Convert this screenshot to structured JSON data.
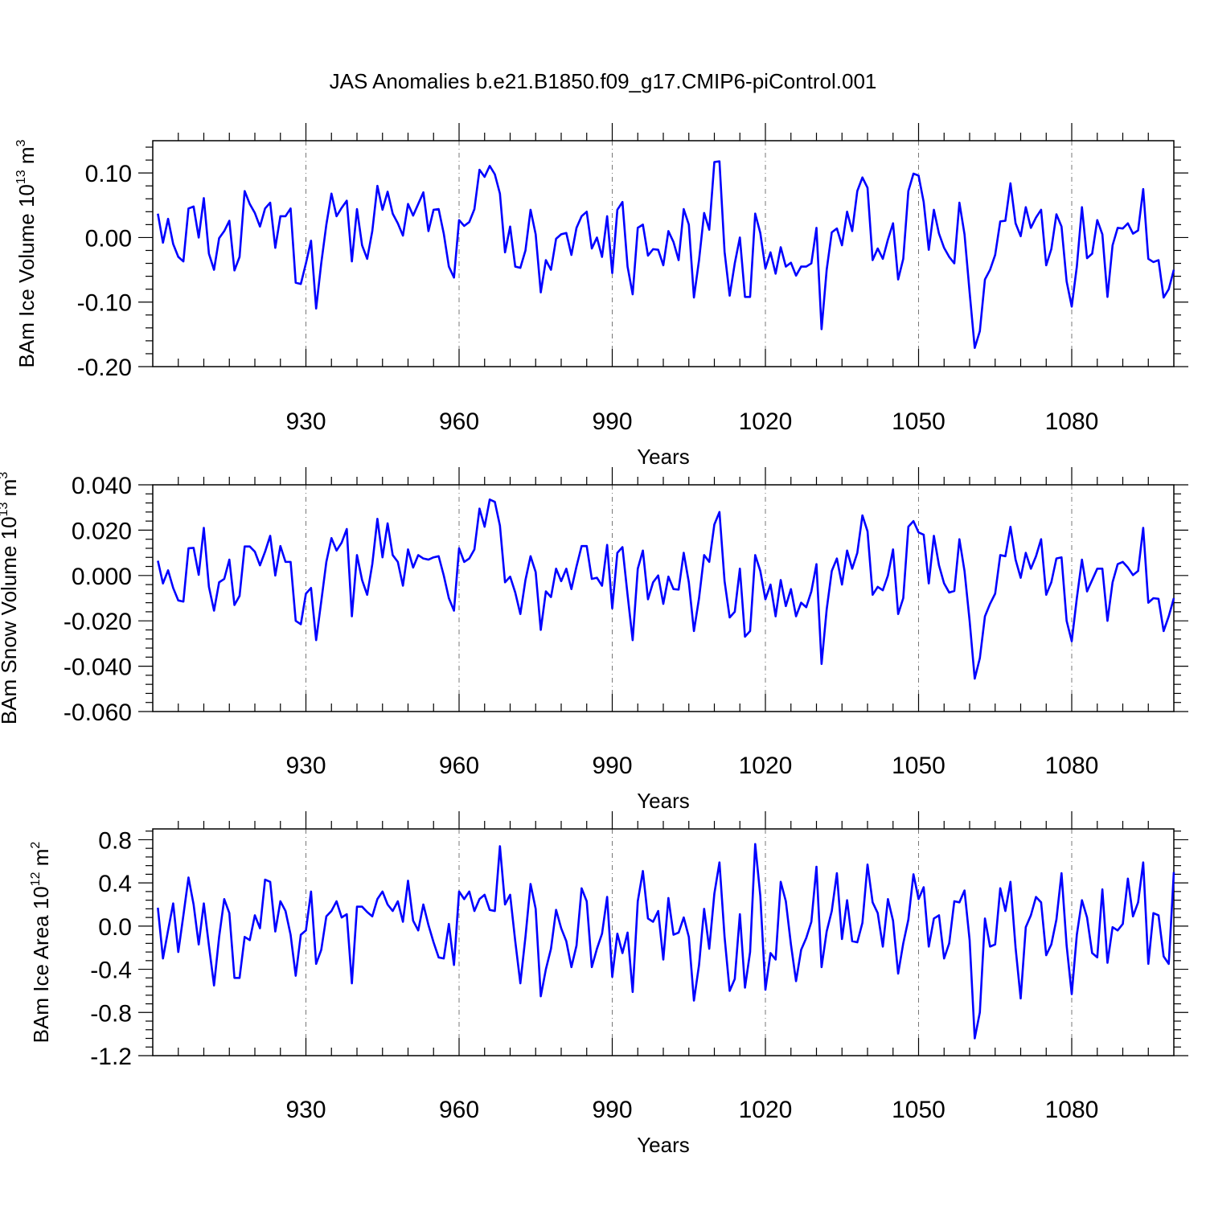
{
  "title": "JAS Anomalies b.e21.B1850.f09_g17.CMIP6-piControl.001",
  "chart_data": [
    {
      "type": "line",
      "name": "ice-volume",
      "ylabel": "BAm Ice Volume 10",
      "yunit_exp": "13",
      "yunit_tail": " m",
      "yunit_pow": "3",
      "xlabel": "Years",
      "xlim": [
        900,
        1100
      ],
      "ylim": [
        -0.2,
        0.15
      ],
      "yticks": [
        -0.2,
        -0.1,
        0.0,
        0.1
      ],
      "ytick_labels": [
        "-0.20",
        "-0.10",
        "0.00",
        "0.10"
      ],
      "xticks": [
        930,
        960,
        990,
        1020,
        1050,
        1080
      ],
      "xtick_labels": [
        "930",
        "960",
        "990",
        "1020",
        "1050",
        "1080"
      ],
      "x_start": 901,
      "color": "#0000ff",
      "values": [
        0.037,
        -0.008,
        0.029,
        -0.01,
        -0.03,
        -0.037,
        0.045,
        0.048,
        0.0,
        0.061,
        -0.025,
        -0.05,
        -0.001,
        0.01,
        0.026,
        -0.051,
        -0.03,
        0.072,
        0.052,
        0.038,
        0.017,
        0.045,
        0.054,
        -0.016,
        0.033,
        0.033,
        0.045,
        -0.07,
        -0.072,
        -0.04,
        -0.005,
        -0.11,
        -0.04,
        0.02,
        0.068,
        0.033,
        0.046,
        0.057,
        -0.037,
        0.044,
        -0.012,
        -0.033,
        0.01,
        0.08,
        0.043,
        0.071,
        0.037,
        0.022,
        0.003,
        0.052,
        0.034,
        0.052,
        0.07,
        0.01,
        0.043,
        0.044,
        0.006,
        -0.045,
        -0.062,
        0.027,
        0.018,
        0.024,
        0.044,
        0.105,
        0.094,
        0.111,
        0.098,
        0.068,
        -0.023,
        0.017,
        -0.045,
        -0.047,
        -0.02,
        0.043,
        0.005,
        -0.085,
        -0.035,
        -0.05,
        -0.002,
        0.005,
        0.007,
        -0.027,
        0.015,
        0.033,
        0.04,
        -0.017,
        0.0,
        -0.03,
        0.033,
        -0.055,
        0.043,
        0.055,
        -0.045,
        -0.088,
        0.015,
        0.02,
        -0.028,
        -0.018,
        -0.019,
        -0.043,
        0.01,
        -0.007,
        -0.035,
        0.044,
        0.02,
        -0.093,
        -0.035,
        0.038,
        0.012,
        0.117,
        0.118,
        -0.022,
        -0.09,
        -0.04,
        0.0,
        -0.092,
        -0.092,
        0.037,
        0.007,
        -0.048,
        -0.023,
        -0.056,
        -0.015,
        -0.045,
        -0.039,
        -0.059,
        -0.045,
        -0.045,
        -0.04,
        0.015,
        -0.142,
        -0.05,
        0.008,
        0.014,
        -0.012,
        0.04,
        0.01,
        0.072,
        0.093,
        0.077,
        -0.035,
        -0.017,
        -0.033,
        -0.003,
        0.022,
        -0.065,
        -0.033,
        0.072,
        0.099,
        0.096,
        0.055,
        -0.019,
        0.043,
        0.006,
        -0.016,
        -0.03,
        -0.04,
        0.054,
        0.005,
        -0.085,
        -0.171,
        -0.145,
        -0.065,
        -0.05,
        -0.027,
        0.025,
        0.026,
        0.084,
        0.022,
        0.002,
        0.047,
        0.015,
        0.031,
        0.043,
        -0.043,
        -0.018,
        0.036,
        0.017,
        -0.068,
        -0.107,
        -0.045,
        0.047,
        -0.032,
        -0.025,
        0.027,
        0.005,
        -0.092,
        -0.012,
        0.015,
        0.014,
        0.022,
        0.006,
        0.011,
        0.075,
        -0.033,
        -0.038,
        -0.035,
        -0.093,
        -0.08,
        -0.05
      ]
    },
    {
      "type": "line",
      "name": "snow-volume",
      "ylabel": "BAm Snow Volume 10",
      "yunit_exp": "13",
      "yunit_tail": " m",
      "yunit_pow": "3",
      "xlabel": "Years",
      "xlim": [
        900,
        1100
      ],
      "ylim": [
        -0.06,
        0.04
      ],
      "yticks": [
        -0.06,
        -0.04,
        -0.02,
        0.0,
        0.02,
        0.04
      ],
      "ytick_labels": [
        "-0.060",
        "-0.040",
        "-0.020",
        "0.000",
        "0.020",
        "0.040"
      ],
      "xticks": [
        930,
        960,
        990,
        1020,
        1050,
        1080
      ],
      "xtick_labels": [
        "930",
        "960",
        "990",
        "1020",
        "1050",
        "1080"
      ],
      "x_start": 901,
      "color": "#0000ff",
      "values": [
        0.0065,
        -0.0035,
        0.0023,
        -0.0055,
        -0.011,
        -0.0115,
        0.012,
        0.0122,
        0.0003,
        0.021,
        -0.005,
        -0.0155,
        -0.003,
        -0.0015,
        0.007,
        -0.013,
        -0.009,
        0.0128,
        0.0128,
        0.0105,
        0.0045,
        0.0105,
        0.0175,
        0.0,
        0.013,
        0.006,
        0.006,
        -0.02,
        -0.0215,
        -0.008,
        -0.0055,
        -0.0285,
        -0.0115,
        0.006,
        0.0165,
        0.011,
        0.0145,
        0.0205,
        -0.018,
        0.009,
        -0.002,
        -0.0085,
        0.005,
        0.025,
        0.008,
        0.023,
        0.009,
        0.006,
        -0.0045,
        0.0115,
        0.0035,
        0.009,
        0.0075,
        0.007,
        0.008,
        0.0085,
        0.0,
        -0.01,
        -0.0155,
        0.012,
        0.006,
        0.0075,
        0.0115,
        0.0295,
        0.0215,
        0.0335,
        0.0325,
        0.022,
        -0.003,
        -0.0005,
        -0.0075,
        -0.017,
        -0.002,
        0.0085,
        0.0015,
        -0.024,
        -0.007,
        -0.0095,
        0.003,
        -0.0025,
        0.003,
        -0.006,
        0.004,
        0.013,
        0.013,
        -0.0015,
        -0.001,
        -0.0045,
        0.0135,
        -0.0145,
        0.01,
        0.0125,
        -0.0085,
        -0.0285,
        0.003,
        0.011,
        -0.0105,
        -0.003,
        0.0,
        -0.0125,
        -0.0005,
        -0.006,
        -0.0062,
        0.01,
        -0.003,
        -0.0245,
        -0.01,
        0.009,
        0.006,
        0.0225,
        0.028,
        -0.0025,
        -0.0185,
        -0.016,
        0.003,
        -0.027,
        -0.0245,
        0.009,
        0.002,
        -0.0105,
        -0.004,
        -0.018,
        -0.002,
        -0.0135,
        -0.006,
        -0.018,
        -0.012,
        -0.014,
        -0.007,
        0.005,
        -0.039,
        -0.015,
        0.002,
        0.0075,
        -0.004,
        0.011,
        0.003,
        0.01,
        0.0265,
        0.0195,
        -0.0085,
        -0.005,
        -0.0065,
        0.0,
        0.0115,
        -0.017,
        -0.01,
        0.0215,
        0.024,
        0.019,
        0.018,
        -0.0035,
        0.0175,
        0.0045,
        -0.0035,
        -0.0075,
        -0.0068,
        0.016,
        0.002,
        -0.02,
        -0.0455,
        -0.0365,
        -0.018,
        -0.0125,
        -0.008,
        0.009,
        0.0085,
        0.0215,
        0.007,
        -0.001,
        0.01,
        0.003,
        0.0085,
        0.016,
        -0.0085,
        -0.003,
        0.0075,
        0.008,
        -0.02,
        -0.029,
        -0.01,
        0.007,
        -0.007,
        -0.002,
        0.003,
        0.003,
        -0.02,
        -0.003,
        0.005,
        0.006,
        0.0035,
        0.0002,
        0.002,
        0.021,
        -0.012,
        -0.01,
        -0.0103,
        -0.0245,
        -0.018,
        -0.01
      ]
    },
    {
      "type": "line",
      "name": "ice-area",
      "ylabel": "BAm Ice Area 10",
      "yunit_exp": "12",
      "yunit_tail": " m",
      "yunit_pow": "2",
      "xlabel": "Years",
      "xlim": [
        900,
        1100
      ],
      "ylim": [
        -1.2,
        0.9
      ],
      "yticks": [
        -1.2,
        -0.8,
        -0.4,
        0.0,
        0.4,
        0.8
      ],
      "ytick_labels": [
        "-1.2",
        "-0.8",
        "-0.4",
        "0.0",
        "0.4",
        "0.8"
      ],
      "xticks": [
        930,
        960,
        990,
        1020,
        1050,
        1080
      ],
      "xtick_labels": [
        "930",
        "960",
        "990",
        "1020",
        "1050",
        "1080"
      ],
      "x_start": 901,
      "color": "#0000ff",
      "values": [
        0.17,
        -0.3,
        -0.04,
        0.21,
        -0.24,
        0.1,
        0.45,
        0.2,
        -0.17,
        0.21,
        -0.18,
        -0.55,
        -0.1,
        0.25,
        0.12,
        -0.48,
        -0.48,
        -0.1,
        -0.13,
        0.1,
        -0.02,
        0.43,
        0.41,
        -0.05,
        0.23,
        0.14,
        -0.08,
        -0.46,
        -0.08,
        -0.04,
        0.32,
        -0.35,
        -0.22,
        0.09,
        0.14,
        0.23,
        0.08,
        0.11,
        -0.53,
        0.18,
        0.18,
        0.13,
        0.09,
        0.25,
        0.32,
        0.2,
        0.14,
        0.23,
        0.04,
        0.42,
        0.05,
        -0.04,
        0.2,
        0.01,
        -0.15,
        -0.29,
        -0.3,
        0.02,
        -0.36,
        0.32,
        0.25,
        0.32,
        0.14,
        0.25,
        0.29,
        0.15,
        0.14,
        0.74,
        0.2,
        0.29,
        -0.14,
        -0.53,
        -0.1,
        0.39,
        0.16,
        -0.65,
        -0.4,
        -0.21,
        0.15,
        -0.02,
        -0.14,
        -0.38,
        -0.18,
        0.35,
        0.23,
        -0.38,
        -0.21,
        -0.07,
        0.27,
        -0.47,
        -0.07,
        -0.25,
        -0.06,
        -0.61,
        0.23,
        0.51,
        0.07,
        0.04,
        0.14,
        -0.31,
        0.26,
        -0.08,
        -0.06,
        0.08,
        -0.1,
        -0.69,
        -0.36,
        0.16,
        -0.21,
        0.3,
        0.59,
        -0.1,
        -0.6,
        -0.49,
        0.11,
        -0.57,
        -0.24,
        0.76,
        0.28,
        -0.59,
        -0.25,
        -0.31,
        0.41,
        0.23,
        -0.17,
        -0.51,
        -0.22,
        -0.11,
        0.04,
        0.55,
        -0.38,
        -0.05,
        0.14,
        0.49,
        -0.12,
        0.24,
        -0.14,
        -0.15,
        0.03,
        0.57,
        0.22,
        0.12,
        -0.19,
        0.25,
        0.05,
        -0.44,
        -0.16,
        0.06,
        0.48,
        0.25,
        0.36,
        -0.19,
        0.07,
        0.1,
        -0.3,
        -0.16,
        0.23,
        0.22,
        0.33,
        -0.13,
        -1.04,
        -0.8,
        0.07,
        -0.19,
        -0.17,
        0.35,
        0.14,
        0.41,
        -0.2,
        -0.67,
        -0.01,
        0.1,
        0.27,
        0.22,
        -0.27,
        -0.17,
        0.06,
        0.49,
        -0.18,
        -0.63,
        -0.08,
        0.24,
        0.08,
        -0.25,
        -0.29,
        0.34,
        -0.34,
        -0.01,
        -0.04,
        0.02,
        0.44,
        0.09,
        0.22,
        0.59,
        -0.35,
        0.12,
        0.1,
        -0.28,
        -0.35,
        0.5
      ]
    }
  ]
}
